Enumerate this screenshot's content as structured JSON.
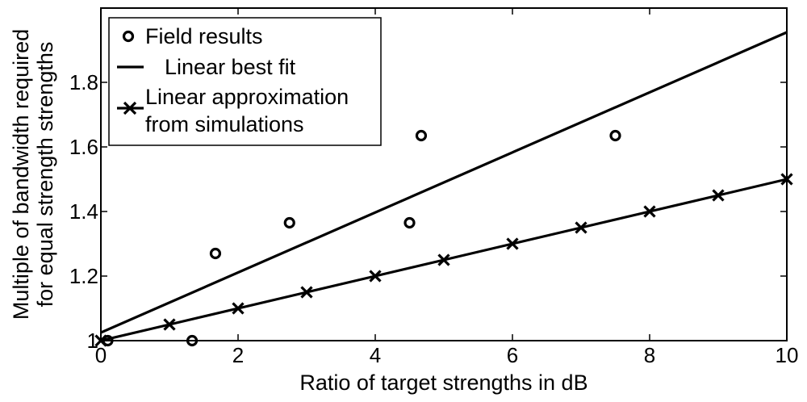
{
  "chart_data": {
    "type": "scatter",
    "title": "",
    "xlabel": "Ratio of target strengths in dB",
    "ylabel_line1": "Multiple of bandwidth required",
    "ylabel_line2": "for equal strength strengths",
    "xlim": [
      0,
      10
    ],
    "ylim": [
      1,
      2
    ],
    "xticks": [
      0,
      2,
      4,
      6,
      8,
      10
    ],
    "xtick_labels": [
      "0",
      "2",
      "4",
      "6",
      "8",
      "10"
    ],
    "yticks": [
      1,
      1.2,
      1.4,
      1.6,
      1.8
    ],
    "ytick_labels": [
      "1",
      "1.2",
      "1.4",
      "1.6",
      "1.8"
    ],
    "grid": false,
    "legend_position": "top-left",
    "series": [
      {
        "name": "Field results",
        "kind": "scatter-circle",
        "x": [
          0.1,
          1.33,
          1.67,
          2.75,
          4.5,
          4.67,
          7.5
        ],
        "y": [
          1.0,
          1.0,
          1.27,
          1.365,
          1.365,
          1.635,
          1.635
        ]
      },
      {
        "name": "Linear best fit",
        "kind": "line",
        "x": [
          0,
          10
        ],
        "y": [
          1.025,
          1.955
        ]
      },
      {
        "name": "Linear approximation from simulations",
        "legend_line1": "Linear approximation",
        "legend_line2": "from simulations",
        "kind": "line-x",
        "x": [
          0,
          1,
          2,
          3,
          4,
          5,
          6,
          7,
          8,
          9,
          10
        ],
        "y": [
          1.0,
          1.05,
          1.1,
          1.15,
          1.2,
          1.25,
          1.3,
          1.35,
          1.4,
          1.45,
          1.5
        ]
      }
    ],
    "colors": {
      "ink": "#000000",
      "background": "#ffffff"
    }
  }
}
